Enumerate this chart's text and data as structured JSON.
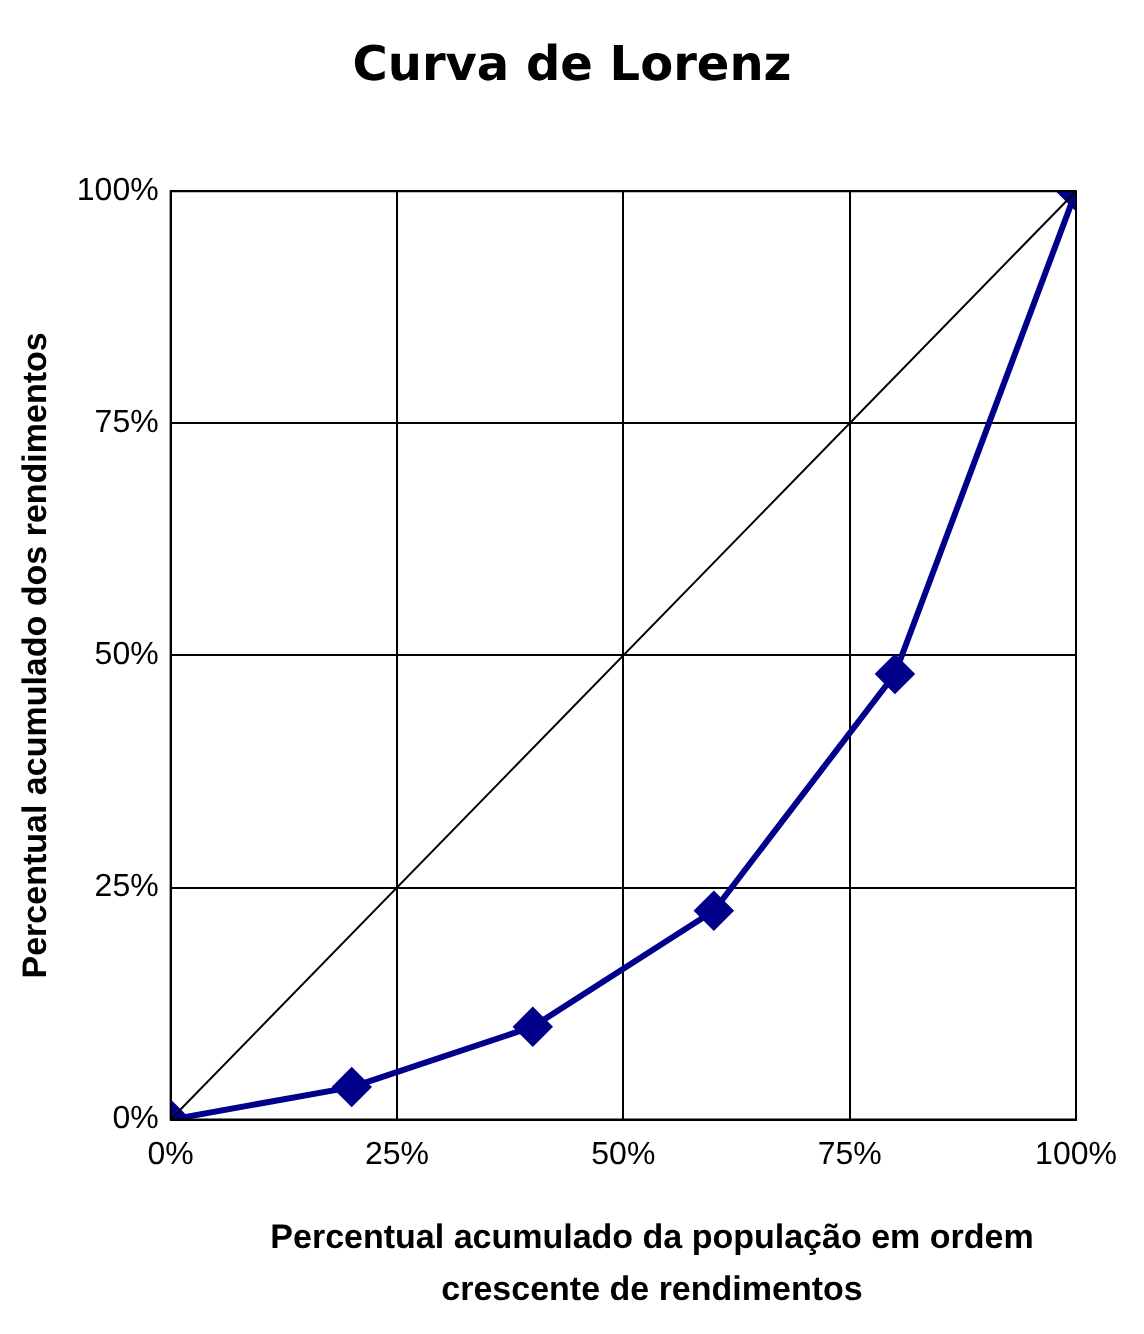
{
  "chart_data": {
    "type": "line",
    "title": "Curva de Lorenz",
    "xlabel": "Percentual acumulado da população em ordem crescente de rendimentos",
    "ylabel": "Percentual acumulado dos rendimentos",
    "series": [
      {
        "color": "#000000",
        "marker": "none",
        "x": [
          0,
          100
        ],
        "values": [
          0,
          100
        ]
      },
      {
        "color": "#00008b",
        "marker": "diamond",
        "x": [
          0,
          20,
          40,
          60,
          80,
          100
        ],
        "values": [
          0,
          3.5,
          10,
          22.5,
          48,
          100
        ]
      }
    ],
    "xlim": [
      0,
      100
    ],
    "ylim": [
      0,
      100
    ],
    "xticks": [
      {
        "value": 0,
        "label": "0%"
      },
      {
        "value": 25,
        "label": "25%"
      },
      {
        "value": 50,
        "label": "50%"
      },
      {
        "value": 75,
        "label": "75%"
      },
      {
        "value": 100,
        "label": "100%"
      }
    ],
    "yticks": [
      {
        "value": 0,
        "label": "0%"
      },
      {
        "value": 25,
        "label": "25%"
      },
      {
        "value": 50,
        "label": "50%"
      },
      {
        "value": 75,
        "label": "75%"
      },
      {
        "value": 100,
        "label": "100%"
      }
    ],
    "grid": true,
    "legend": false
  }
}
